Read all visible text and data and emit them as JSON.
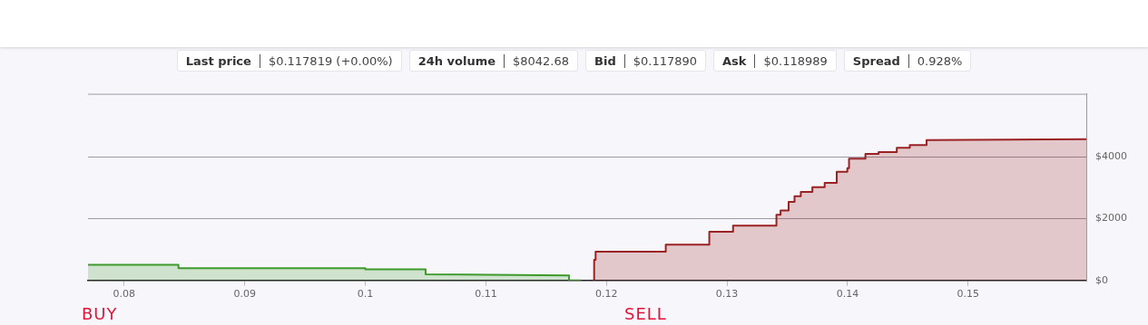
{
  "chart_data": {
    "type": "area",
    "annotations": [
      "Last price",
      "$0.117819 (+0.00%)",
      "24h volume",
      "$8042.68",
      "Bid",
      "$0.117890",
      "Ask",
      "$0.118989",
      "Spread",
      "0.928%",
      "BUY",
      "SELL"
    ],
    "series": [
      {
        "color": "#3f9a2c",
        "x": [
          0.077,
          0.0845,
          0.0845,
          0.1,
          0.1,
          0.105,
          0.105,
          0.1169,
          0.1169,
          0.1179
        ],
        "values": [
          510,
          510,
          400,
          400,
          360,
          360,
          200,
          160,
          10,
          0
        ]
      },
      {
        "color": "#9b2222",
        "x": [
          0.11898,
          0.11898,
          0.1191,
          0.1191,
          0.12492,
          0.12492,
          0.12853,
          0.12853,
          0.1305,
          0.1305,
          0.1341,
          0.1341,
          0.13444,
          0.13444,
          0.13511,
          0.13511,
          0.1356,
          0.1356,
          0.13612,
          0.13612,
          0.13708,
          0.13708,
          0.1381,
          0.1381,
          0.1391,
          0.1391,
          0.13998,
          0.13998,
          0.14012,
          0.14012,
          0.14148,
          0.14148,
          0.14257,
          0.14257,
          0.14408,
          0.14408,
          0.14516,
          0.14516,
          0.14655,
          0.14655,
          0.1598
        ],
        "values": [
          0,
          670,
          670,
          930,
          930,
          1160,
          1160,
          1580,
          1580,
          1780,
          1780,
          2130,
          2130,
          2270,
          2270,
          2550,
          2550,
          2730,
          2730,
          2870,
          2870,
          3020,
          3020,
          3160,
          3160,
          3520,
          3520,
          3640,
          3640,
          3950,
          3950,
          4100,
          4100,
          4160,
          4160,
          4300,
          4300,
          4390,
          4390,
          4550,
          4580
        ]
      }
    ],
    "xlim": [
      0.077,
      0.1598
    ],
    "xticks": [
      0.08,
      0.09,
      0.1,
      0.11,
      0.12,
      0.13,
      0.14,
      0.15
    ],
    "ylim": [
      0,
      6050
    ],
    "yticks": [
      {
        "value": 0,
        "label": "$0"
      },
      {
        "value": 2000,
        "label": "$2000"
      },
      {
        "value": 4000,
        "label": "$4000"
      }
    ],
    "grid": "y",
    "legend": false
  }
}
